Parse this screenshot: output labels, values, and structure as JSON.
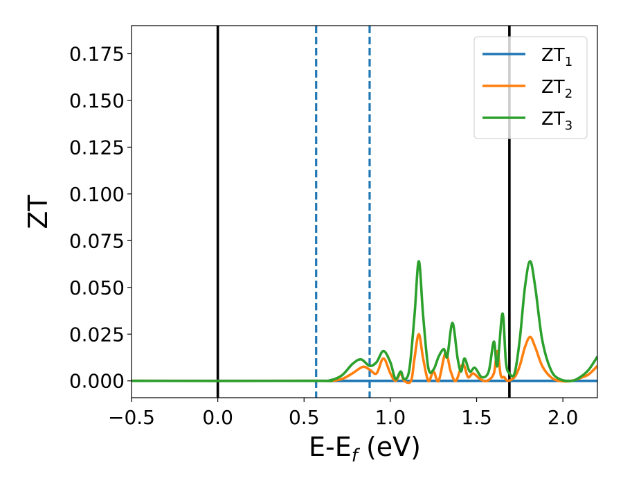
{
  "chart_data": {
    "type": "line",
    "xlabel": "E-E",
    "xlabel_sub": "f",
    "xlabel_unit": " (eV)",
    "ylabel": "ZT",
    "xlim": [
      -0.5,
      2.2
    ],
    "ylim": [
      -0.009,
      0.19
    ],
    "xticks": [
      -0.5,
      0.0,
      0.5,
      1.0,
      1.5,
      2.0
    ],
    "xtick_labels": [
      "−0.5",
      "0.0",
      "0.5",
      "1.0",
      "1.5",
      "2.0"
    ],
    "yticks": [
      0.0,
      0.025,
      0.05,
      0.075,
      0.1,
      0.125,
      0.15,
      0.175
    ],
    "ytick_labels": [
      "0.000",
      "0.025",
      "0.050",
      "0.075",
      "0.100",
      "0.125",
      "0.150",
      "0.175"
    ],
    "grid": false,
    "legend_position": "top-right",
    "vlines": [
      {
        "x": 0.0,
        "style": "solid",
        "color": "#000000"
      },
      {
        "x": 0.57,
        "style": "dashed",
        "color": "#1f77b4"
      },
      {
        "x": 0.88,
        "style": "dashed",
        "color": "#1f77b4"
      },
      {
        "x": 1.69,
        "style": "solid",
        "color": "#000000"
      }
    ],
    "series": [
      {
        "name": "ZT",
        "name_sub": "1",
        "color": "#1f77b4",
        "points": [
          [
            -0.5,
            0.0
          ],
          [
            2.2,
            0.0
          ]
        ]
      },
      {
        "name": "ZT",
        "name_sub": "2",
        "color": "#ff7f0e",
        "points": [
          [
            -0.5,
            0.0
          ],
          [
            0.55,
            0.0
          ],
          [
            0.65,
            0.0
          ],
          [
            0.72,
            0.001
          ],
          [
            0.78,
            0.004
          ],
          [
            0.84,
            0.0075
          ],
          [
            0.88,
            0.006
          ],
          [
            0.92,
            0.004
          ],
          [
            0.96,
            0.012
          ],
          [
            1.0,
            0.004
          ],
          [
            1.03,
            0.0
          ],
          [
            1.06,
            0.004
          ],
          [
            1.08,
            0.0
          ],
          [
            1.12,
            0.0
          ],
          [
            1.14,
            0.012
          ],
          [
            1.165,
            0.025
          ],
          [
            1.19,
            0.012
          ],
          [
            1.22,
            0.0
          ],
          [
            1.25,
            0.005
          ],
          [
            1.28,
            0.0
          ],
          [
            1.32,
            0.015
          ],
          [
            1.35,
            0.005
          ],
          [
            1.38,
            0.0
          ],
          [
            1.42,
            0.009
          ],
          [
            1.45,
            0.002
          ],
          [
            1.48,
            0.004
          ],
          [
            1.52,
            0.001
          ],
          [
            1.56,
            0.0
          ],
          [
            1.6,
            0.004
          ],
          [
            1.62,
            0.016
          ],
          [
            1.64,
            0.003
          ],
          [
            1.66,
            0.002
          ],
          [
            1.68,
            0.0
          ],
          [
            1.72,
            0.002
          ],
          [
            1.75,
            0.008
          ],
          [
            1.78,
            0.018
          ],
          [
            1.81,
            0.0235
          ],
          [
            1.84,
            0.018
          ],
          [
            1.88,
            0.008
          ],
          [
            1.93,
            0.002
          ],
          [
            1.98,
            0.0
          ],
          [
            2.05,
            0.0
          ],
          [
            2.1,
            0.0015
          ],
          [
            2.15,
            0.0035
          ],
          [
            2.2,
            0.008
          ]
        ]
      },
      {
        "name": "ZT",
        "name_sub": "3",
        "color": "#2ca02c",
        "points": [
          [
            -0.5,
            0.0
          ],
          [
            0.55,
            0.0
          ],
          [
            0.65,
            0.0003
          ],
          [
            0.72,
            0.003
          ],
          [
            0.78,
            0.009
          ],
          [
            0.83,
            0.0115
          ],
          [
            0.88,
            0.008
          ],
          [
            0.92,
            0.01
          ],
          [
            0.96,
            0.016
          ],
          [
            1.0,
            0.01
          ],
          [
            1.03,
            0.001
          ],
          [
            1.06,
            0.005
          ],
          [
            1.08,
            0.001
          ],
          [
            1.11,
            0.006
          ],
          [
            1.14,
            0.035
          ],
          [
            1.165,
            0.064
          ],
          [
            1.19,
            0.035
          ],
          [
            1.22,
            0.007
          ],
          [
            1.25,
            0.006
          ],
          [
            1.28,
            0.013
          ],
          [
            1.31,
            0.017
          ],
          [
            1.33,
            0.013
          ],
          [
            1.36,
            0.031
          ],
          [
            1.39,
            0.012
          ],
          [
            1.41,
            0.005
          ],
          [
            1.43,
            0.012
          ],
          [
            1.46,
            0.005
          ],
          [
            1.49,
            0.007
          ],
          [
            1.53,
            0.002
          ],
          [
            1.57,
            0.005
          ],
          [
            1.6,
            0.021
          ],
          [
            1.62,
            0.008
          ],
          [
            1.65,
            0.036
          ],
          [
            1.67,
            0.01
          ],
          [
            1.69,
            0.004
          ],
          [
            1.72,
            0.004
          ],
          [
            1.75,
            0.022
          ],
          [
            1.78,
            0.05
          ],
          [
            1.81,
            0.064
          ],
          [
            1.84,
            0.05
          ],
          [
            1.88,
            0.022
          ],
          [
            1.93,
            0.006
          ],
          [
            1.98,
            0.001
          ],
          [
            2.05,
            0.0
          ],
          [
            2.1,
            0.002
          ],
          [
            2.15,
            0.006
          ],
          [
            2.2,
            0.013
          ]
        ]
      }
    ]
  }
}
